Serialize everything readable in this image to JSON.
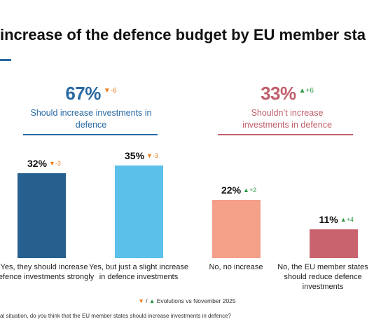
{
  "title": "increase of the defence budget by EU member sta",
  "colors": {
    "increase_accent": "#2a6aa3",
    "not_increase_accent": "#c0606c",
    "down_arrow": "#ee7d1c",
    "up_arrow": "#2e9a46"
  },
  "groups": [
    {
      "percent": "67%",
      "evolution": "▼-6",
      "evolution_direction": "down",
      "label": "Should increase investments in defence"
    },
    {
      "percent": "33%",
      "evolution": "▲+6",
      "evolution_direction": "up",
      "label": "Shouldn’t increase investments in defence"
    }
  ],
  "legend": {
    "down_symbol": "▼",
    "separator": "/",
    "up_symbol": "▲",
    "text": "Evolutions vs November 2025"
  },
  "footnote": "al situation, do you think that the EU member states should increase investments in defence?",
  "chart_data": {
    "type": "bar",
    "categories": [
      "Yes, they should increase defence investments strongly",
      "Yes, but just a slight increase in defence investments",
      "No, no increase",
      "No, the EU member states should reduce defence investments"
    ],
    "values": [
      32,
      35,
      22,
      11
    ],
    "value_labels": [
      "32%",
      "35%",
      "22%",
      "11%"
    ],
    "evolutions": [
      -3,
      -3,
      2,
      4
    ],
    "evolution_labels": [
      "▼-3",
      "▼-3",
      "▲+2",
      "▲+4"
    ],
    "colors": [
      "#25608f",
      "#5bc0ea",
      "#f5a089",
      "#c9646f"
    ],
    "ylim": [
      0,
      35
    ],
    "grid": false,
    "legend": "bottom"
  }
}
